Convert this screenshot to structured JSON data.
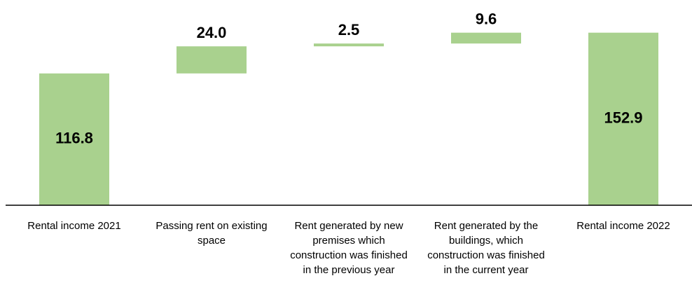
{
  "chart_data": {
    "type": "waterfall",
    "categories": [
      "Rental income 2021",
      "Passing rent on existing space",
      "Rent generated by new premises which construction was finished in the previous year",
      "Rent generated by the buildings, which construction was finished in the current year",
      "Rental income 2022"
    ],
    "values": [
      116.8,
      24.0,
      2.5,
      9.6,
      152.9
    ],
    "value_labels": [
      "116.8",
      "24.0",
      "2.5",
      "9.6",
      "152.9"
    ],
    "totals": [
      true,
      false,
      false,
      false,
      true
    ],
    "color": "#a9d18e",
    "ylim": [
      0,
      180
    ]
  }
}
